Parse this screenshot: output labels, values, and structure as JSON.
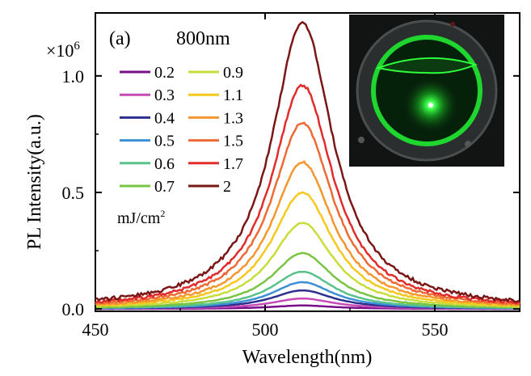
{
  "chart_data": {
    "type": "line",
    "panel_label": "(a)",
    "excitation_label": "800nm",
    "xlabel": "Wavelength(nm)",
    "ylabel": "PL Intensity(a.u.)",
    "y_multiplier": "×10",
    "y_multiplier_exp": "6",
    "xlim": [
      450,
      575
    ],
    "ylim": [
      -0.01,
      1.27
    ],
    "x_ticks": [
      450,
      500,
      550
    ],
    "y_ticks": [
      0.0,
      0.5,
      1.0
    ],
    "y_tick_labels": [
      "0.0",
      "0.5",
      "1.0"
    ],
    "legend_unit": "mJ/cm",
    "legend_unit_exp": "2",
    "peak_wavelength": 511,
    "line_shape": "Lorentzian-like emission, FWHM ≈ 22 nm, centered at 511 nm",
    "series": [
      {
        "name": "0.2",
        "peak": 0.015,
        "color": "#7a0d8a"
      },
      {
        "name": "0.3",
        "peak": 0.045,
        "color": "#c74bb5"
      },
      {
        "name": "0.4",
        "peak": 0.08,
        "color": "#2d2f8f"
      },
      {
        "name": "0.5",
        "peak": 0.115,
        "color": "#3d8fd6"
      },
      {
        "name": "0.6",
        "peak": 0.16,
        "color": "#58c28b"
      },
      {
        "name": "0.7",
        "peak": 0.24,
        "color": "#79c442"
      },
      {
        "name": "0.9",
        "peak": 0.37,
        "color": "#c9dc3a"
      },
      {
        "name": "1.1",
        "peak": 0.5,
        "color": "#f6c81e"
      },
      {
        "name": "1.3",
        "peak": 0.63,
        "color": "#f5962e"
      },
      {
        "name": "1.5",
        "peak": 0.8,
        "color": "#ee6a34"
      },
      {
        "name": "1.7",
        "peak": 0.96,
        "color": "#e12c2c"
      },
      {
        "name": "2",
        "peak": 1.23,
        "color": "#7b1616"
      }
    ]
  },
  "inset": {
    "description_icon": "green-ring-photo"
  }
}
